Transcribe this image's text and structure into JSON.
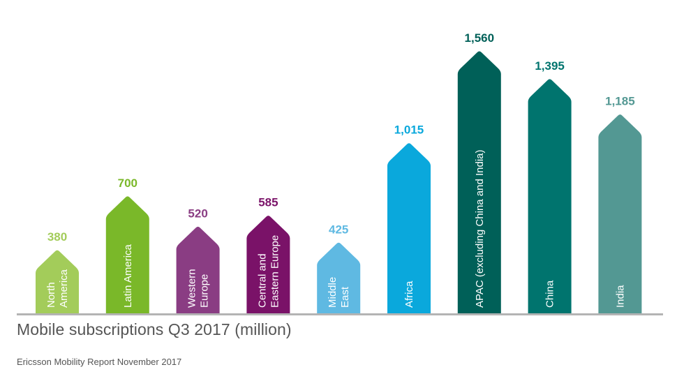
{
  "chart_data": {
    "type": "bar",
    "title": "Mobile subscriptions Q3 2017 (million)",
    "source": "Ericsson Mobility Report November 2017",
    "categories": [
      [
        "North",
        "America"
      ],
      [
        "Latin America"
      ],
      [
        "Western",
        "Europe"
      ],
      [
        "Central and",
        "Eastern Europe"
      ],
      [
        "Middle",
        "East"
      ],
      [
        "Africa"
      ],
      [
        "APAC (excluding China and India)"
      ],
      [
        "China"
      ],
      [
        "India"
      ]
    ],
    "values": [
      380,
      700,
      520,
      585,
      425,
      1015,
      1560,
      1395,
      1185
    ],
    "value_labels": [
      "380",
      "700",
      "520",
      "585",
      "425",
      "1,015",
      "1,560",
      "1,395",
      "1,185"
    ],
    "bar_colors": [
      "#a3cc5a",
      "#7ab829",
      "#8a3d83",
      "#7a1268",
      "#5fb9e2",
      "#0aa8dc",
      "#006058",
      "#00746e",
      "#539893"
    ],
    "label_colors": [
      "#a3cc5a",
      "#7ab829",
      "#8a3d83",
      "#7a1268",
      "#5fb9e2",
      "#0aa8dc",
      "#006058",
      "#00746e",
      "#539893"
    ],
    "baseline_color": "#b4b4b4",
    "ylim": [
      0,
      1560
    ]
  }
}
